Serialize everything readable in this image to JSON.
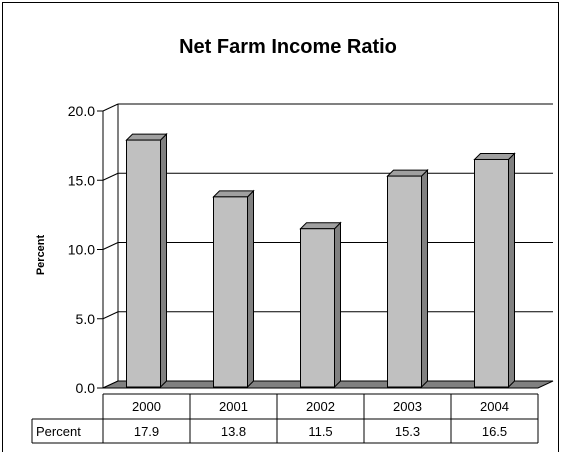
{
  "chart_data": {
    "type": "bar",
    "title": "Net Farm Income Ratio",
    "ylabel": "Percent",
    "xlabel": "",
    "categories": [
      "2000",
      "2001",
      "2002",
      "2003",
      "2004"
    ],
    "series": [
      {
        "name": "Percent",
        "values": [
          17.9,
          13.8,
          11.5,
          15.3,
          16.5
        ]
      }
    ],
    "value_labels": [
      "17.9",
      "13.8",
      "11.5",
      "15.3",
      "16.5"
    ],
    "ylim": [
      0,
      20
    ],
    "yticks": [
      "0.0",
      "5.0",
      "10.0",
      "15.0",
      "20.0"
    ],
    "grid": true,
    "data_table": true,
    "bar_color": "#c0c0c0",
    "bar_side_color": "#808080",
    "bar_top_color": "#a0a0a0"
  }
}
